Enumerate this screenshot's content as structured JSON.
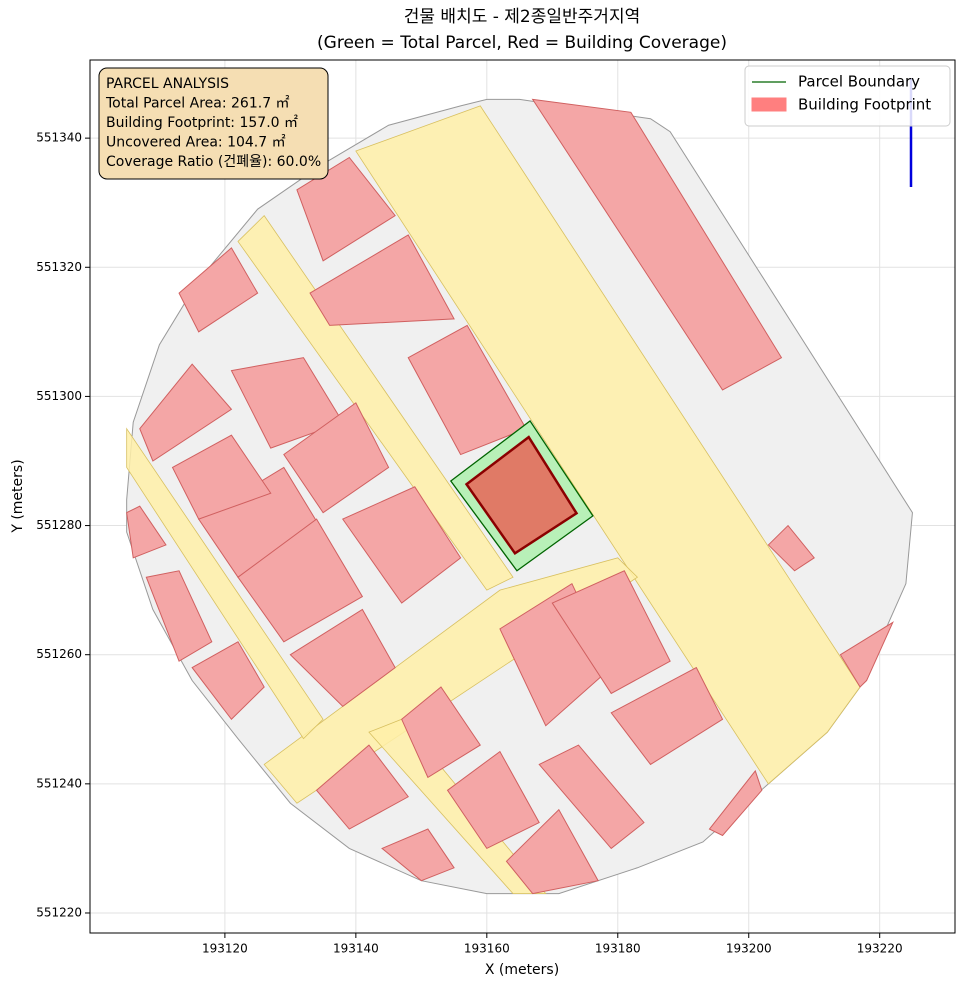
{
  "chart_data": {
    "type": "map",
    "title": [
      "건물 배치도 - 제2종일반주거지역",
      "(Green = Total Parcel, Red = Building Coverage)"
    ],
    "x_label": "X (meters)",
    "y_label": "Y (meters)",
    "xlim": [
      193099.4,
      193231.5
    ],
    "ylim": [
      551216.9,
      551352.1
    ],
    "xticks": [
      193120,
      193140,
      193160,
      193180,
      193200,
      193220
    ],
    "yticks": [
      551220,
      551240,
      551260,
      551280,
      551300,
      551320,
      551340
    ],
    "grid": true,
    "legend_position": "upper right",
    "annotation": [
      "PARCEL ANALYSIS",
      "Total Parcel Area: 261.7 ㎡",
      "Building Footprint: 157.0 ㎡",
      "Uncovered Area: 104.7 ㎡",
      "Coverage Ratio (건폐율): 60.0%"
    ],
    "series": [
      {
        "name": "Parcel Boundary",
        "color": "#006400",
        "fill": "#b8f0b8",
        "x": [
          193154.5,
          193166.6,
          193176.2,
          193164.6
        ],
        "y": [
          551286.9,
          551296.2,
          551281.5,
          551273.0
        ]
      },
      {
        "name": "Building Footprint",
        "color": "#8b0000",
        "fill": "#ff7f7f",
        "x": [
          193156.9,
          193166.4,
          193173.7,
          193164.3
        ],
        "y": [
          551286.4,
          551293.7,
          551281.9,
          551275.7
        ]
      }
    ],
    "context": {
      "area": {
        "color": "#999999",
        "fill": "#f0f0f0",
        "x": [
          193160,
          193165,
          193185,
          193188,
          193225,
          193224,
          193217,
          193212,
          193203,
          193193,
          193183,
          193171,
          193160,
          193150,
          193139,
          193130,
          193122,
          193115,
          193109,
          193105,
          193105,
          193106,
          193110,
          193116,
          193125,
          193135,
          193145,
          193156
        ],
        "y": [
          551346,
          551346,
          551343,
          551341,
          551282,
          551271,
          551255,
          551248,
          551240,
          551231,
          551227,
          551223,
          551223,
          551225,
          551230,
          551237,
          551247,
          551256,
          551267,
          551279,
          551284,
          551296,
          551308,
          551318,
          551329,
          551336,
          551342,
          551345
        ]
      },
      "roads": {
        "color": "#d8c060",
        "fill": "#fff0a8",
        "shapes": [
          {
            "x": [
              193140,
              193159,
              193217,
              193212,
              193203
            ],
            "y": [
              551338,
              551345,
              551255,
              551248,
              551240
            ]
          },
          {
            "x": [
              193126,
              193162,
              193180,
              193183,
              193131
            ],
            "y": [
              551243,
              551270,
              551275,
              551272,
              551237
            ]
          },
          {
            "x": [
              193122,
              193126,
              193164,
              193160
            ],
            "y": [
              551324,
              551328,
              551272,
              551270
            ]
          },
          {
            "x": [
              193105,
              193135,
              193132,
              193105
            ],
            "y": [
              551295,
              551250,
              551247,
              551289
            ]
          },
          {
            "x": [
              193142,
              193147,
              193169,
              193164
            ],
            "y": [
              551248,
              551250,
              551223,
              551223
            ]
          }
        ]
      },
      "buildings": {
        "color": "#d06060",
        "fill": "#f4a6a6",
        "shapes": [
          {
            "x": [
              193167,
              193182,
              193205,
              193196
            ],
            "y": [
              551346,
              551344,
              551306,
              551301
            ]
          },
          {
            "x": [
              193148,
              193157,
              193166,
              193156
            ],
            "y": [
              551306,
              551311,
              551295,
              551291
            ]
          },
          {
            "x": [
              193133,
              193148,
              193155,
              193136
            ],
            "y": [
              551316,
              551325,
              551312,
              551311
            ]
          },
          {
            "x": [
              193131,
              193139,
              193146,
              193135
            ],
            "y": [
              551332,
              551337,
              551328,
              551321
            ]
          },
          {
            "x": [
              193121,
              193132,
              193138,
              193127
            ],
            "y": [
              551304,
              551306,
              551296,
              551292
            ]
          },
          {
            "x": [
              193129,
              193140,
              193145,
              193135
            ],
            "y": [
              551291,
              551299,
              551289,
              551282
            ]
          },
          {
            "x": [
              193116,
              193129,
              193135,
              193122
            ],
            "y": [
              551281,
              551289,
              551279,
              551272
            ]
          },
          {
            "x": [
              193122,
              193134,
              193141,
              193129
            ],
            "y": [
              551272,
              551281,
              551269,
              551262
            ]
          },
          {
            "x": [
              193138,
              193149,
              193156,
              193147
            ],
            "y": [
              551281,
              551286,
              551275,
              551268
            ]
          },
          {
            "x": [
              193130,
              193141,
              193146,
              193138
            ],
            "y": [
              551260,
              551267,
              551258,
              551252
            ]
          },
          {
            "x": [
              193113,
              193121,
              193125,
              193116
            ],
            "y": [
              551316,
              551323,
              551316,
              551310
            ]
          },
          {
            "x": [
              193112,
              193121,
              193127,
              193116
            ],
            "y": [
              551289,
              551294,
              551285,
              551281
            ]
          },
          {
            "x": [
              193107,
              193115,
              193121,
              193109
            ],
            "y": [
              551295,
              551305,
              551298,
              551290
            ]
          },
          {
            "x": [
              193108,
              193113,
              193118,
              193113
            ],
            "y": [
              551272,
              551273,
              551262,
              551259
            ]
          },
          {
            "x": [
              193115,
              193122,
              193126,
              193121
            ],
            "y": [
              551258,
              551262,
              551255,
              551250
            ]
          },
          {
            "x": [
              193162,
              193173,
              193179,
              193169
            ],
            "y": [
              551264,
              551271,
              551258,
              551249
            ]
          },
          {
            "x": [
              193170,
              193181,
              193188,
              193179
            ],
            "y": [
              551268,
              551273,
              551259,
              551254
            ]
          },
          {
            "x": [
              193179,
              193192,
              193196,
              193185
            ],
            "y": [
              551251,
              551258,
              551250,
              551243
            ]
          },
          {
            "x": [
              193168,
              193174,
              193184,
              193179
            ],
            "y": [
              551243,
              551246,
              551234,
              551230
            ]
          },
          {
            "x": [
              193154,
              193162,
              193168,
              193160
            ],
            "y": [
              551239,
              551245,
              551234,
              551230
            ]
          },
          {
            "x": [
              193147,
              193153,
              193159,
              193151
            ],
            "y": [
              551250,
              551255,
              551246,
              551241
            ]
          },
          {
            "x": [
              193134,
              193142,
              193148,
              193139
            ],
            "y": [
              551239,
              551246,
              551238,
              551233
            ]
          },
          {
            "x": [
              193163,
              193171,
              193177,
              193167
            ],
            "y": [
              551228,
              551236,
              551225,
              551223
            ]
          },
          {
            "x": [
              193194,
              193201,
              193202,
              193196
            ],
            "y": [
              551233,
              551242,
              551239,
              551232
            ]
          },
          {
            "x": [
              193203,
              193206,
              193210,
              193207
            ],
            "y": [
              551277,
              551280,
              551275,
              551273
            ]
          },
          {
            "x": [
              193214,
              193222,
              193218,
              193217
            ],
            "y": [
              551260,
              551265,
              551256,
              551255
            ]
          },
          {
            "x": [
              193105,
              193107,
              193111,
              193106
            ],
            "y": [
              551282,
              551283,
              551277,
              551275
            ]
          },
          {
            "x": [
              193144,
              193151,
              193155,
              193150
            ],
            "y": [
              551230,
              551233,
              551227,
              551225
            ]
          }
        ]
      }
    }
  }
}
